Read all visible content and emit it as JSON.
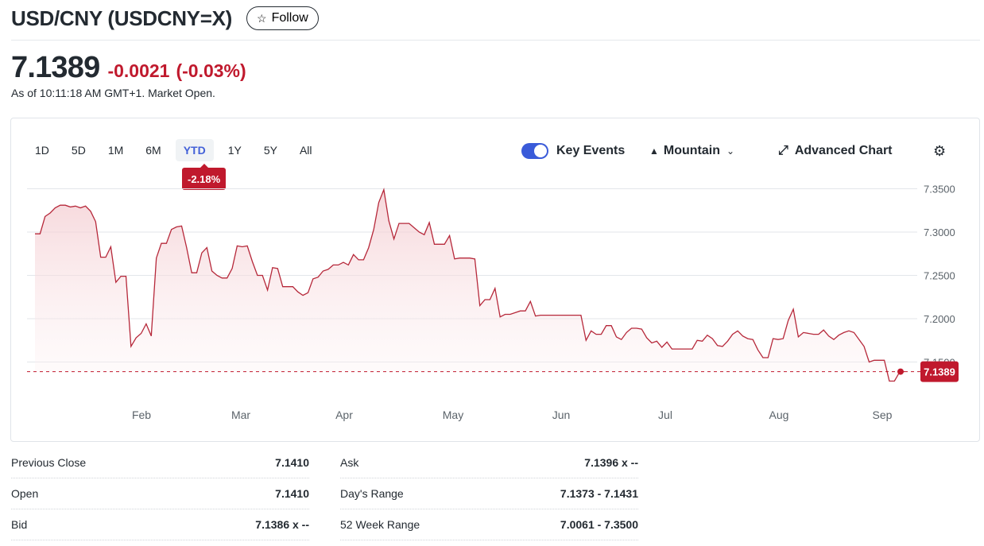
{
  "header": {
    "title": "USD/CNY (USDCNY=X)",
    "follow_label": "Follow"
  },
  "quote": {
    "price": "7.1389",
    "change": "-0.0021",
    "change_pct": "(-0.03%)",
    "as_of": "As of 10:11:18 AM GMT+1. Market Open."
  },
  "chart_controls": {
    "ranges": [
      "1D",
      "5D",
      "1M",
      "6M",
      "YTD",
      "1Y",
      "5Y",
      "All"
    ],
    "active_range": "YTD",
    "ytd_change": "-2.18%",
    "key_events_label": "Key Events",
    "key_events_on": true,
    "chart_type_label": "Mountain",
    "advanced_chart_label": "Advanced Chart"
  },
  "colors": {
    "negative": "#c0192d",
    "accent": "#4361d8",
    "line": "#b6283a",
    "fill": "#f7dcdf"
  },
  "chart_data": {
    "type": "area",
    "title": "",
    "xlabel": "",
    "ylabel": "",
    "x_ticks": [
      "Feb",
      "Mar",
      "Apr",
      "May",
      "Jun",
      "Jul",
      "Aug",
      "Sep"
    ],
    "y_ticks": [
      "7.3500",
      "7.3000",
      "7.2500",
      "7.2000",
      "7.1500"
    ],
    "ylim": [
      7.1,
      7.36
    ],
    "grid": true,
    "current_price_label": "7.1389",
    "current_price": 7.1389,
    "series": [
      {
        "values": [
          7.298,
          7.298,
          7.318,
          7.322,
          7.328,
          7.331,
          7.331,
          7.329,
          7.33,
          7.328,
          7.33,
          7.324,
          7.312,
          7.271,
          7.271,
          7.283,
          7.242,
          7.249,
          7.249,
          7.168,
          7.178,
          7.183,
          7.194,
          7.18,
          7.27,
          7.287,
          7.287,
          7.303,
          7.306,
          7.307,
          7.282,
          7.253,
          7.253,
          7.276,
          7.282,
          7.255,
          7.25,
          7.247,
          7.247,
          7.258,
          7.284,
          7.283,
          7.284,
          7.266,
          7.25,
          7.25,
          7.233,
          7.259,
          7.258,
          7.237,
          7.237,
          7.237,
          7.231,
          7.227,
          7.23,
          7.246,
          7.248,
          7.255,
          7.257,
          7.262,
          7.262,
          7.265,
          7.262,
          7.274,
          7.268,
          7.268,
          7.282,
          7.303,
          7.334,
          7.349,
          7.313,
          7.292,
          7.31,
          7.31,
          7.31,
          7.305,
          7.3,
          7.297,
          7.311,
          7.286,
          7.286,
          7.286,
          7.296,
          7.269,
          7.27,
          7.27,
          7.27,
          7.269,
          7.215,
          7.222,
          7.222,
          7.235,
          7.202,
          7.205,
          7.205,
          7.207,
          7.209,
          7.209,
          7.22,
          7.203,
          7.204,
          7.204,
          7.204,
          7.204,
          7.204,
          7.204,
          7.204,
          7.204,
          7.204,
          7.175,
          7.186,
          7.182,
          7.182,
          7.192,
          7.192,
          7.179,
          7.176,
          7.184,
          7.189,
          7.189,
          7.188,
          7.178,
          7.172,
          7.174,
          7.167,
          7.173,
          7.165,
          7.165,
          7.165,
          7.165,
          7.165,
          7.175,
          7.174,
          7.181,
          7.177,
          7.169,
          7.168,
          7.174,
          7.182,
          7.186,
          7.18,
          7.177,
          7.176,
          7.164,
          7.155,
          7.155,
          7.177,
          7.176,
          7.177,
          7.198,
          7.211,
          7.179,
          7.184,
          7.183,
          7.182,
          7.182,
          7.187,
          7.18,
          7.176,
          7.181,
          7.184,
          7.186,
          7.184,
          7.176,
          7.168,
          7.15,
          7.152,
          7.152,
          7.152,
          7.128,
          7.128,
          7.138,
          7.139
        ]
      }
    ]
  },
  "stats": {
    "left": [
      {
        "label": "Previous Close",
        "value": "7.1410"
      },
      {
        "label": "Open",
        "value": "7.1410"
      },
      {
        "label": "Bid",
        "value": "7.1386 x --"
      }
    ],
    "right": [
      {
        "label": "Ask",
        "value": "7.1396 x --"
      },
      {
        "label": "Day's Range",
        "value": "7.1373 - 7.1431"
      },
      {
        "label": "52 Week Range",
        "value": "7.0061 - 7.3500"
      }
    ]
  }
}
